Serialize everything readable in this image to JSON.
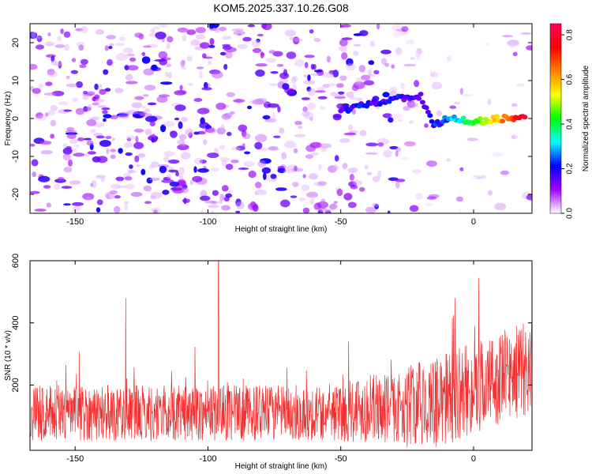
{
  "chart_data": [
    {
      "type": "heatmap",
      "title": "KOM5.2025.337.10.26.G08",
      "xlabel": "Height of straight line (km)",
      "ylabel": "Frequency (Hz)",
      "xlim": [
        -167,
        22
      ],
      "ylim": [
        -25,
        25
      ],
      "xticks": [
        -150,
        -100,
        -50,
        0
      ],
      "yticks": [
        -20,
        -10,
        0,
        10,
        20
      ],
      "colorbar": {
        "label": "Normalized spectral amplitude",
        "range": [
          0.0,
          0.85
        ],
        "ticks": [
          "0.0",
          "0.2",
          "0.4",
          "0.6",
          "0.8"
        ],
        "tick_values": [
          0.0,
          0.2,
          0.4,
          0.6,
          0.8
        ],
        "colors": [
          "#ffffff",
          "#a000ff",
          "#0000ff",
          "#00ffff",
          "#00ff00",
          "#ffff00",
          "#ff8000",
          "#ff0000",
          "#ff0060"
        ]
      },
      "ridge": {
        "description_points_x": [
          -50,
          -40,
          -30,
          -20,
          -15,
          -10,
          0,
          10,
          20
        ],
        "description_points_y": [
          2,
          4,
          5,
          6,
          -2,
          0,
          -1,
          0,
          0
        ]
      }
    },
    {
      "type": "line",
      "xlabel": "Height of straight line (km)",
      "ylabel": "SNR (10 * v/v)",
      "xlim": [
        -167,
        22
      ],
      "ylim": [
        -10,
        600
      ],
      "xticks": [
        -150,
        -100,
        -50,
        0
      ],
      "yticks": [
        200,
        400,
        600
      ],
      "series_color": "#f03030",
      "notable_peaks": [
        {
          "x": -96,
          "y": 600
        },
        {
          "x": -131,
          "y": 480
        },
        {
          "x": 2,
          "y": 545
        },
        {
          "x": -7,
          "y": 480
        }
      ]
    }
  ]
}
